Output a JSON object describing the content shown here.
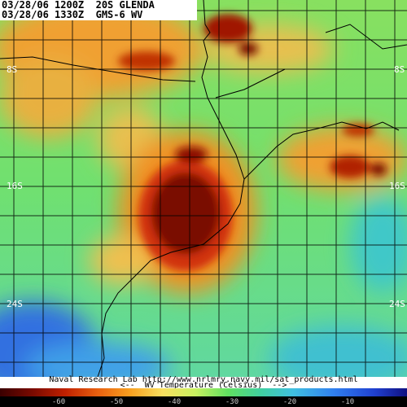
{
  "header": {
    "line1": "03/28/06 1200Z  20S GLENDA",
    "line2": "03/28/06 1330Z  GMS-6 WV"
  },
  "latitude_labels": {
    "left": [
      "8S",
      "16S",
      "24S"
    ],
    "right": [
      "8S",
      "16S",
      "24S"
    ]
  },
  "footer": {
    "credit": "Naval Research Lab http://www.nrlmry.navy.mil/sat_products.html",
    "legend_title": "<--  WV Temperature (Celsius)  -->",
    "colorbar_ticks": [
      -60,
      -50,
      -40,
      -30,
      -20,
      -10
    ]
  }
}
